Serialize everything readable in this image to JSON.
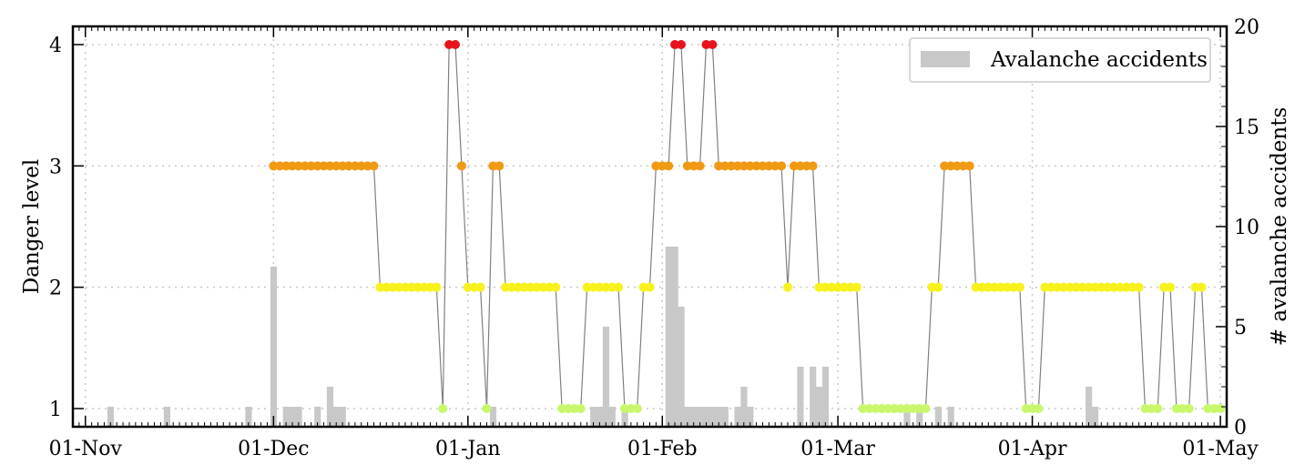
{
  "chart_data": {
    "type": "line",
    "xlabel": "",
    "ylabel": "Danger level",
    "y2label": "# avalanche accidents",
    "x_range_days": [
      -2,
      182
    ],
    "ylim": [
      0.85,
      4.15
    ],
    "y2lim": [
      0,
      20
    ],
    "x_ticks": [
      {
        "day": 0,
        "label": "01-Nov"
      },
      {
        "day": 30,
        "label": "01-Dec"
      },
      {
        "day": 61,
        "label": "01-Jan"
      },
      {
        "day": 92,
        "label": "01-Feb"
      },
      {
        "day": 120,
        "label": "01-Mar"
      },
      {
        "day": 151,
        "label": "01-Apr"
      },
      {
        "day": 181,
        "label": "01-May"
      }
    ],
    "y_ticks": [
      1,
      2,
      3,
      4
    ],
    "y2_ticks": [
      0,
      5,
      10,
      15,
      20
    ],
    "grid": true,
    "legend": {
      "position": "top-right",
      "entries": [
        "Avalanche accidents"
      ]
    },
    "colors": {
      "1": "#c8f76b",
      "2": "#f7f21c",
      "3": "#f09a14",
      "4": "#e8131a",
      "bar": "#c8c8c8",
      "line": "#808080"
    },
    "danger_series": {
      "name": "Danger level",
      "start_day": 30,
      "values": [
        3,
        3,
        3,
        3,
        3,
        3,
        3,
        3,
        3,
        3,
        3,
        3,
        3,
        3,
        3,
        3,
        3,
        2,
        2,
        2,
        2,
        2,
        2,
        2,
        2,
        2,
        2,
        1,
        4,
        4,
        3,
        2,
        2,
        2,
        1,
        3,
        3,
        2,
        2,
        2,
        2,
        2,
        2,
        2,
        2,
        2,
        1,
        1,
        1,
        1,
        2,
        2,
        2,
        2,
        2,
        2,
        1,
        1,
        1,
        2,
        2,
        3,
        3,
        3,
        4,
        4,
        3,
        3,
        3,
        4,
        4,
        3,
        3,
        3,
        3,
        3,
        3,
        3,
        3,
        3,
        3,
        3,
        2,
        3,
        3,
        3,
        3,
        2,
        2,
        2,
        2,
        2,
        2,
        2,
        1,
        1,
        1,
        1,
        1,
        1,
        1,
        1,
        1,
        1,
        1,
        2,
        2,
        3,
        3,
        3,
        3,
        3,
        2,
        2,
        2,
        2,
        2,
        2,
        2,
        2,
        1,
        1,
        1,
        2,
        2,
        2,
        2,
        2,
        2,
        2,
        2,
        2,
        2,
        2,
        2,
        2,
        2,
        2,
        2,
        1,
        1,
        1,
        2,
        2,
        1,
        1,
        1,
        2,
        2,
        1,
        1,
        1
      ]
    },
    "accident_series": {
      "name": "Avalanche accidents",
      "bars": [
        {
          "day": 4,
          "count": 1
        },
        {
          "day": 13,
          "count": 1
        },
        {
          "day": 26,
          "count": 1
        },
        {
          "day": 30,
          "count": 8
        },
        {
          "day": 32,
          "count": 1
        },
        {
          "day": 33,
          "count": 1
        },
        {
          "day": 34,
          "count": 1
        },
        {
          "day": 37,
          "count": 1
        },
        {
          "day": 39,
          "count": 2
        },
        {
          "day": 40,
          "count": 1
        },
        {
          "day": 41,
          "count": 1
        },
        {
          "day": 65,
          "count": 1
        },
        {
          "day": 81,
          "count": 1
        },
        {
          "day": 82,
          "count": 1
        },
        {
          "day": 83,
          "count": 5
        },
        {
          "day": 84,
          "count": 1
        },
        {
          "day": 86,
          "count": 1
        },
        {
          "day": 93,
          "count": 9
        },
        {
          "day": 94,
          "count": 9
        },
        {
          "day": 95,
          "count": 6
        },
        {
          "day": 96,
          "count": 1
        },
        {
          "day": 97,
          "count": 1
        },
        {
          "day": 98,
          "count": 1
        },
        {
          "day": 99,
          "count": 1
        },
        {
          "day": 100,
          "count": 1
        },
        {
          "day": 101,
          "count": 1
        },
        {
          "day": 102,
          "count": 1
        },
        {
          "day": 104,
          "count": 1
        },
        {
          "day": 105,
          "count": 2
        },
        {
          "day": 106,
          "count": 1
        },
        {
          "day": 114,
          "count": 3
        },
        {
          "day": 116,
          "count": 3
        },
        {
          "day": 117,
          "count": 2
        },
        {
          "day": 118,
          "count": 3
        },
        {
          "day": 131,
          "count": 1
        },
        {
          "day": 133,
          "count": 1
        },
        {
          "day": 136,
          "count": 1
        },
        {
          "day": 138,
          "count": 1
        },
        {
          "day": 160,
          "count": 2
        },
        {
          "day": 161,
          "count": 1
        }
      ]
    }
  }
}
